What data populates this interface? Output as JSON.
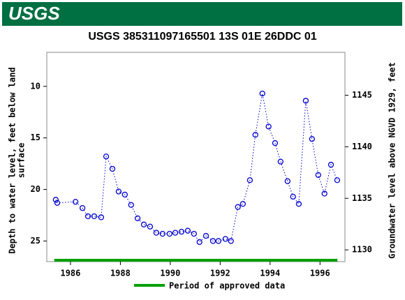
{
  "header": {
    "logo": "USGS"
  },
  "chart_data": {
    "type": "line",
    "title": "USGS 385311097165501 13S 01E 26DDC 01",
    "ylabel": [
      "Depth to water level, feet below land",
      "surface"
    ],
    "y2label": "Groundwater level above NGVD 1929, feet",
    "x": [
      1985.41,
      1985.47,
      1986.2,
      1986.48,
      1986.7,
      1986.95,
      1987.23,
      1987.43,
      1987.68,
      1987.93,
      1988.18,
      1988.43,
      1988.69,
      1988.94,
      1989.19,
      1989.44,
      1989.69,
      1989.97,
      1990.2,
      1990.45,
      1990.7,
      1990.95,
      1991.17,
      1991.43,
      1991.71,
      1991.93,
      1992.21,
      1992.43,
      1992.71,
      1992.91,
      1993.19,
      1993.41,
      1993.69,
      1993.94,
      1994.2,
      1994.42,
      1994.7,
      1994.92,
      1995.15,
      1995.43,
      1995.68,
      1995.93,
      1996.18,
      1996.44,
      1996.69
    ],
    "values": [
      21.0,
      21.3,
      21.2,
      21.8,
      22.6,
      22.6,
      22.7,
      16.8,
      18.0,
      20.2,
      20.5,
      21.5,
      22.8,
      23.4,
      23.6,
      24.2,
      24.3,
      24.3,
      24.2,
      24.1,
      24.0,
      24.3,
      25.1,
      24.5,
      25.0,
      25.0,
      24.8,
      25.0,
      21.7,
      21.4,
      19.1,
      14.7,
      10.7,
      13.9,
      15.5,
      17.3,
      19.2,
      20.7,
      21.4,
      11.4,
      15.1,
      18.6,
      20.4,
      17.6,
      19.1
    ],
    "color": "#0000cc",
    "xlim": [
      1985.05,
      1997.0
    ],
    "xticks": [
      1986,
      1988,
      1990,
      1992,
      1994,
      1996
    ],
    "ylim": [
      6.7,
      27.0
    ],
    "y_inverted": true,
    "yticks": [
      10,
      15,
      20,
      25
    ],
    "y2lim": [
      1128.86,
      1149.16
    ],
    "y2ticks": [
      1130,
      1135,
      1140,
      1145
    ],
    "grid": false,
    "approved": {
      "name": "Period of approved data",
      "color": "#00a000",
      "x": [
        1985.35,
        1996.7
      ]
    }
  }
}
